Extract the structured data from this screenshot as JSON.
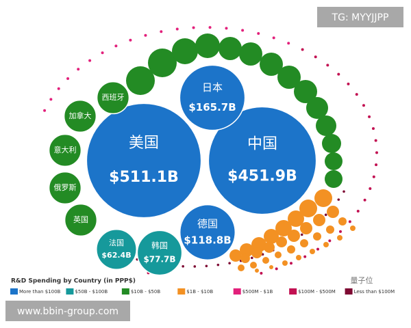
{
  "chart_data": {
    "type": "bubble",
    "title": "R&D Spending by Country (in PPP$)",
    "series": [
      {
        "name": "More than $100B",
        "color": "#1c74c9",
        "categories": [
          "美国",
          "中国",
          "日本",
          "德国"
        ],
        "values": [
          511.1,
          451.9,
          165.7,
          118.8
        ],
        "value_labels": [
          "$511.1B",
          "$451.9B",
          "$165.7B",
          "$118.8B"
        ]
      },
      {
        "name": "$50B - $100B",
        "color": "#16999b",
        "categories": [
          "法国",
          "韩国"
        ],
        "values": [
          62.4,
          77.7
        ],
        "value_labels": [
          "$62.4B",
          "$77.7B"
        ]
      },
      {
        "name": "$10B - $50B",
        "color": "#238b24",
        "categories": [
          "西班牙",
          "加拿大",
          "意大利",
          "俄罗斯",
          "英国"
        ],
        "values": [
          40,
          40,
          40,
          40,
          40
        ]
      },
      {
        "name": "$1B - $10B",
        "color": "#f39123",
        "categories": [],
        "values": []
      },
      {
        "name": "$500M - $1B",
        "color": "#e2207b",
        "categories": [],
        "values": []
      },
      {
        "name": "$100M - $500M",
        "color": "#c21152",
        "categories": [],
        "values": []
      },
      {
        "name": "Less than $100M",
        "color": "#7e0a33",
        "categories": [],
        "values": []
      }
    ]
  },
  "watermarks": {
    "top": "TG: MYYJJPP",
    "bottom": "www.bbin-group.com",
    "logo": "量子位"
  }
}
